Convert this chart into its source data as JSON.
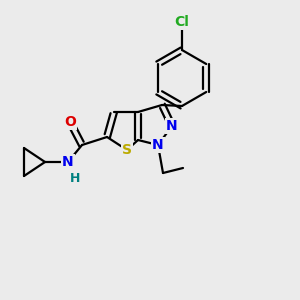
{
  "bg_color": "#ebebeb",
  "bond_color": "#000000",
  "bond_width": 1.6,
  "fig_width": 3.0,
  "fig_height": 3.0,
  "dpi": 100,
  "atom_colors": {
    "Cl": "#22aa22",
    "O": "#dd0000",
    "N": "#0000ee",
    "S": "#bbaa00",
    "H": "#008080",
    "C": "#000000"
  }
}
